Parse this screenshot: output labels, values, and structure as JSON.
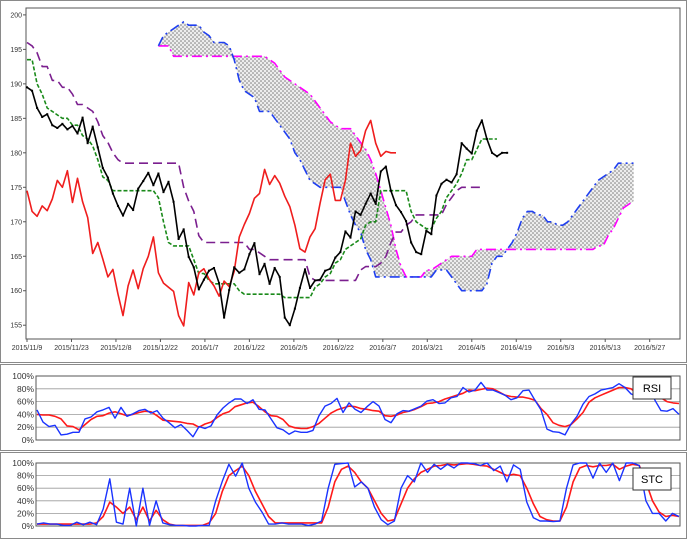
{
  "colors": {
    "price": "#000000",
    "tenkan": "#e8202a",
    "kijun": "#1a8a1a",
    "senkouA": "#ff00ff",
    "senkouB": "#1f3ff0",
    "chikou": "#ef1d1d",
    "kijun_env": "#7b1f8f",
    "rsi_fast": "#1a33ff",
    "rsi_slow": "#ff1a1a",
    "stc_fast": "#1a33ff",
    "stc_slow": "#ff1a1a"
  },
  "chart_data": [
    {
      "type": "line",
      "panel": "ichimoku",
      "x_ticks": [
        "2015/11/9",
        "2015/11/23",
        "2015/12/8",
        "2015/12/22",
        "2016/1/7",
        "2016/1/22",
        "2016/2/5",
        "2016/2/22",
        "2016/3/7",
        "2016/3/21",
        "2016/4/5",
        "2016/4/19",
        "2016/5/3",
        "2016/5/13",
        "2016/5/27"
      ],
      "y_ticks": [
        155,
        160,
        165,
        170,
        175,
        180,
        185,
        190,
        195,
        200
      ],
      "ylim": [
        153,
        201
      ],
      "grid": false,
      "series": [
        {
          "name": "",
          "key": "price",
          "style": "solid-markers",
          "values": [
            189.5,
            189.0,
            186.5,
            185.2,
            185.6,
            184.0,
            183.6,
            184.2,
            183.4,
            183.9,
            182.8,
            185.1,
            181.4,
            183.8,
            180.8,
            177.8,
            176.4,
            174.1,
            172.3,
            170.9,
            172.6,
            171.7,
            174.8,
            175.9,
            177.1,
            175.3,
            177.0,
            174.3,
            175.8,
            172.9,
            167.5,
            168.9,
            164.9,
            163.4,
            160.2,
            161.6,
            162.9,
            163.3,
            161.1,
            156.1,
            160.1,
            163.4,
            162.6,
            163.1,
            165.3,
            166.9,
            162.4,
            163.9,
            161.0,
            163.3,
            162.0,
            156.1,
            155.0,
            157.4,
            160.4,
            163.1,
            160.4,
            161.5,
            161.6,
            162.9,
            163.2,
            164.8,
            165.6,
            168.6,
            167.7,
            171.5,
            171.0,
            172.6,
            174.1,
            172.6,
            177.3,
            178.0,
            174.5,
            172.4,
            171.4,
            170.1,
            167.0,
            165.6,
            165.3,
            168.7,
            168.2,
            173.8,
            175.5,
            176.1,
            175.7,
            176.9,
            181.4,
            180.6,
            179.9,
            183.2,
            184.7,
            182.0,
            180.0,
            179.5,
            180.0,
            180.0
          ]
        },
        {
          "name": "",
          "key": "chikou",
          "style": "solid",
          "values": [
            174.5,
            171.5,
            170.8,
            172.3,
            171.6,
            173.3,
            176.0,
            175.0,
            177.4,
            172.8,
            176.3,
            172.9,
            170.6,
            165.4,
            167.0,
            164.6,
            162.0,
            163.1,
            159.5,
            156.4,
            160.7,
            163.0,
            160.3,
            163.2,
            165.0,
            167.8,
            162.6,
            161.1,
            160.5,
            159.9,
            156.4,
            154.9,
            161.2,
            159.4,
            162.6,
            163.2,
            161.7,
            160.7,
            159.2,
            161.4,
            160.6,
            162.8,
            167.8,
            169.6,
            171.2,
            173.4,
            174.1,
            177.6,
            175.4,
            176.7,
            175.6,
            173.7,
            172.2,
            169.5,
            166.1,
            165.6,
            167.8,
            169.0,
            172.7,
            176.1,
            176.9,
            173.1,
            173.1,
            176.0,
            181.4,
            179.5,
            180.3,
            183.2,
            184.7,
            181.4,
            179.5,
            180.2,
            180.0,
            180.0
          ]
        },
        {
          "name": "",
          "key": "kijun",
          "style": "dashed",
          "values": [
            193.5,
            193.5,
            190.0,
            188.5,
            186.5,
            186.0,
            185.5,
            185.0,
            185.0,
            184.0,
            184.0,
            182.5,
            182.0,
            181.0,
            179.0,
            176.5,
            176.0,
            174.5,
            174.5,
            174.5,
            174.5,
            174.5,
            174.5,
            174.5,
            174.5,
            174.5,
            173.5,
            170.0,
            167.0,
            166.5,
            166.5,
            166.5,
            166.5,
            164.5,
            162.5,
            162.5,
            161.5,
            161.0,
            161.0,
            161.0,
            161.0,
            161.0,
            160.0,
            159.5,
            159.5,
            159.5,
            159.5,
            159.5,
            159.5,
            159.5,
            159.5,
            159.0,
            159.0,
            159.0,
            159.0,
            159.0,
            159.0,
            160.5,
            161.0,
            162.0,
            162.5,
            164.0,
            164.5,
            166.0,
            166.5,
            167.0,
            167.5,
            169.5,
            170.0,
            170.0,
            174.5,
            174.5,
            174.5,
            174.5,
            174.5,
            174.5,
            171.5,
            170.0,
            169.5,
            169.0,
            169.0,
            170.5,
            171.5,
            173.5,
            174.5,
            175.5,
            177.0,
            179.0,
            179.0,
            180.5,
            182.0,
            182.0,
            182.0,
            182.0
          ]
        },
        {
          "name": "",
          "key": "kijun_env",
          "style": "longdash",
          "values": [
            196.0,
            195.5,
            194.5,
            192.5,
            192.5,
            190.5,
            190.5,
            189.5,
            189.5,
            188.5,
            187.0,
            187.0,
            186.5,
            186.0,
            184.5,
            182.5,
            181.5,
            180.0,
            179.0,
            178.5,
            178.5,
            178.5,
            178.5,
            178.5,
            178.5,
            178.5,
            178.5,
            178.5,
            178.5,
            178.5,
            178.5,
            175.0,
            173.0,
            171.5,
            168.0,
            167.0,
            167.0,
            167.0,
            167.0,
            167.0,
            167.0,
            167.0,
            167.0,
            167.0,
            166.0,
            166.0,
            165.5,
            165.0,
            164.5,
            164.5,
            164.5,
            164.5,
            164.5,
            164.5,
            164.5,
            164.5,
            162.0,
            161.5,
            161.5,
            161.5,
            161.5,
            161.5,
            161.5,
            161.5,
            161.5,
            161.5,
            163.0,
            163.5,
            163.5,
            163.5,
            164.0,
            165.0,
            167.0,
            168.5,
            168.5,
            169.5,
            170.0,
            171.0,
            171.0,
            171.0,
            171.0,
            171.0,
            171.0,
            172.5,
            173.5,
            174.5,
            175.0,
            175.0,
            175.0,
            175.0,
            175.0
          ]
        },
        {
          "name": "",
          "key": "senkouB",
          "style": "dashdot",
          "values": [
            195.5,
            197.0,
            197.5,
            198.0,
            198.5,
            199.0,
            198.5,
            198.5,
            198.5,
            197.5,
            197.0,
            196.0,
            196.0,
            196.0,
            195.5,
            193.5,
            190.5,
            189.0,
            188.5,
            188.0,
            186.0,
            186.0,
            186.0,
            185.0,
            184.0,
            183.0,
            182.0,
            180.0,
            179.0,
            177.5,
            176.0,
            175.5,
            175.0,
            175.0,
            175.0,
            175.0,
            175.0,
            173.0,
            171.0,
            169.5,
            168.5,
            166.0,
            164.5,
            162.0,
            162.0,
            162.0,
            162.0,
            162.0,
            162.0,
            162.0,
            162.0,
            162.0,
            162.0,
            162.0,
            162.0,
            163.0,
            163.0,
            163.0,
            162.0,
            161.0,
            160.0,
            160.0,
            160.0,
            160.0,
            160.0,
            161.0,
            164.0,
            165.0,
            165.0,
            166.0,
            167.0,
            168.5,
            170.5,
            171.5,
            171.5,
            171.0,
            171.0,
            170.0,
            170.0,
            169.5,
            169.5,
            170.0,
            171.0,
            172.0,
            173.0,
            174.0,
            175.0,
            176.0,
            176.5,
            177.0,
            177.5,
            178.5,
            178.5,
            178.5,
            178.5
          ]
        },
        {
          "name": "",
          "key": "senkouA",
          "style": "dashdot",
          "values": [
            195.5,
            195.5,
            195.5,
            194.0,
            194.0,
            194.0,
            194.0,
            194.0,
            194.0,
            194.0,
            194.0,
            194.0,
            194.0,
            194.0,
            194.0,
            194.0,
            194.0,
            194.0,
            194.0,
            194.0,
            194.0,
            194.0,
            193.5,
            193.0,
            192.0,
            191.0,
            190.5,
            190.0,
            189.5,
            189.0,
            188.5,
            187.5,
            186.5,
            185.5,
            184.5,
            184.0,
            183.5,
            183.5,
            183.5,
            182.5,
            181.5,
            180.5,
            179.0,
            177.0,
            174.5,
            172.0,
            169.5,
            166.0,
            163.5,
            162.0,
            162.0,
            162.0,
            162.0,
            163.0,
            163.0,
            163.5,
            164.0,
            164.5,
            165.0,
            165.0,
            165.0,
            165.0,
            165.0,
            166.0,
            166.0,
            166.0,
            166.0,
            166.0,
            166.0,
            166.0,
            166.0,
            166.0,
            166.0,
            166.0,
            166.0,
            166.0,
            166.0,
            166.0,
            166.0,
            166.0,
            166.0,
            166.0,
            166.0,
            166.0,
            166.0,
            166.0,
            166.0,
            166.5,
            166.5,
            168.0,
            169.0,
            170.5,
            172.0,
            172.5,
            173.0
          ]
        }
      ]
    },
    {
      "type": "line",
      "panel": "rsi",
      "label": "RSI",
      "y_ticks": [
        "100%",
        "80%",
        "60%",
        "40%",
        "20%",
        "0%"
      ],
      "ylim": [
        0,
        100
      ],
      "grid": true,
      "series": [
        {
          "name": "",
          "key": "rsi_fast",
          "values": [
            47,
            28,
            21,
            23,
            8,
            9,
            12,
            12,
            33,
            36,
            44,
            47,
            51,
            34,
            51,
            37,
            41,
            46,
            48,
            42,
            46,
            34,
            27,
            19,
            24,
            15,
            5,
            21,
            18,
            22,
            39,
            50,
            58,
            64,
            64,
            57,
            63,
            48,
            47,
            33,
            19,
            16,
            9,
            14,
            12,
            12,
            15,
            38,
            53,
            57,
            65,
            43,
            58,
            48,
            43,
            52,
            60,
            53,
            32,
            27,
            41,
            46,
            45,
            49,
            53,
            61,
            63,
            57,
            58,
            66,
            68,
            82,
            75,
            78,
            90,
            78,
            78,
            74,
            70,
            63,
            66,
            77,
            78,
            62,
            47,
            17,
            13,
            12,
            8,
            25,
            37,
            56,
            68,
            72,
            78,
            80,
            82,
            88,
            82,
            72,
            68,
            81,
            82,
            62,
            46,
            45,
            49,
            40
          ]
        },
        {
          "name": "",
          "key": "rsi_slow",
          "values": [
            40,
            39,
            39,
            37,
            33,
            22,
            21,
            16,
            24,
            32,
            37,
            38,
            42,
            44,
            41,
            38,
            40,
            43,
            45,
            44,
            38,
            31,
            30,
            29,
            28,
            26,
            25,
            20,
            25,
            28,
            35,
            41,
            44,
            52,
            55,
            58,
            59,
            52,
            44,
            38,
            37,
            32,
            22,
            19,
            18,
            18,
            21,
            26,
            34,
            42,
            47,
            50,
            53,
            52,
            49,
            48,
            46,
            45,
            38,
            37,
            39,
            43,
            45,
            48,
            52,
            57,
            58,
            60,
            64,
            67,
            70,
            73,
            78,
            77,
            79,
            81,
            80,
            75,
            70,
            68,
            67,
            67,
            65,
            62,
            49,
            40,
            27,
            23,
            21,
            24,
            33,
            43,
            59,
            66,
            70,
            74,
            78,
            82,
            82,
            80,
            73,
            70,
            77,
            80,
            66,
            60,
            58,
            57
          ]
        }
      ]
    },
    {
      "type": "line",
      "panel": "stc",
      "label": "STC",
      "y_ticks": [
        "100%",
        "80%",
        "60%",
        "40%",
        "20%",
        "0%"
      ],
      "ylim": [
        0,
        100
      ],
      "grid": true,
      "series": [
        {
          "name": "",
          "key": "stc_fast",
          "values": [
            3,
            5,
            3,
            3,
            1,
            1,
            6,
            2,
            6,
            2,
            27,
            75,
            6,
            3,
            60,
            0,
            60,
            1,
            40,
            5,
            2,
            1,
            1,
            0,
            0,
            1,
            1,
            40,
            71,
            98,
            79,
            100,
            60,
            38,
            22,
            3,
            3,
            5,
            3,
            3,
            3,
            1,
            3,
            8,
            60,
            98,
            99,
            100,
            62,
            70,
            60,
            30,
            10,
            2,
            8,
            60,
            80,
            70,
            100,
            85,
            98,
            90,
            98,
            92,
            100,
            100,
            99,
            96,
            100,
            88,
            95,
            70,
            97,
            90,
            38,
            13,
            8,
            8,
            7,
            8,
            60,
            97,
            100,
            100,
            76,
            100,
            85,
            100,
            72,
            100,
            100,
            96,
            40,
            20,
            20,
            8,
            20,
            15
          ]
        },
        {
          "name": "",
          "key": "stc_slow",
          "values": [
            3,
            3,
            3,
            3,
            3,
            3,
            3,
            3,
            3,
            5,
            15,
            38,
            30,
            20,
            30,
            10,
            30,
            8,
            25,
            10,
            3,
            1,
            1,
            1,
            1,
            1,
            5,
            20,
            55,
            80,
            88,
            95,
            80,
            55,
            35,
            15,
            5,
            5,
            5,
            5,
            5,
            5,
            5,
            5,
            30,
            70,
            90,
            95,
            85,
            70,
            60,
            40,
            20,
            8,
            10,
            35,
            60,
            75,
            85,
            90,
            95,
            96,
            98,
            97,
            98,
            99,
            98,
            96,
            95,
            90,
            85,
            80,
            82,
            80,
            60,
            35,
            15,
            10,
            8,
            8,
            30,
            70,
            92,
            96,
            94,
            96,
            96,
            98,
            90,
            95,
            98,
            96,
            70,
            40,
            22,
            15,
            17,
            15
          ]
        }
      ]
    }
  ]
}
